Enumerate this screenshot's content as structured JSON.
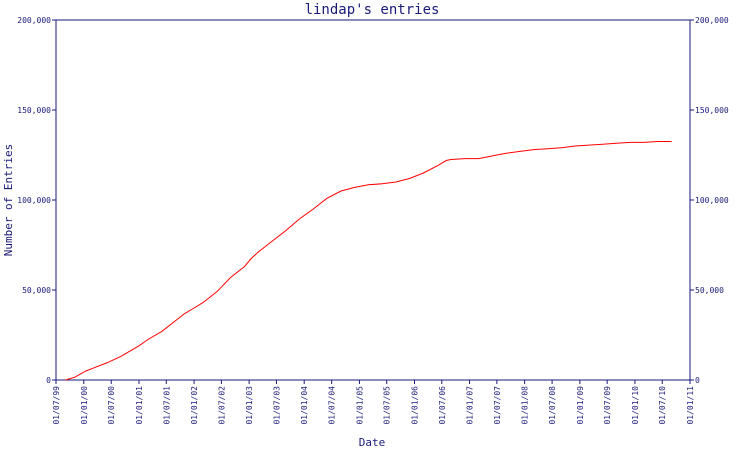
{
  "chart_data": {
    "type": "line",
    "title": "lindap's entries",
    "xlabel": "Date",
    "ylabel": "Number of Entries",
    "ylim": [
      0,
      200000
    ],
    "y_ticks": [
      0,
      50000,
      100000,
      150000,
      200000
    ],
    "y_tick_labels": [
      "0",
      "50,000",
      "100,000",
      "150,000",
      "200,000"
    ],
    "x_tick_labels": [
      "01/07/99",
      "01/01/00",
      "01/07/00",
      "01/01/01",
      "01/07/01",
      "01/01/02",
      "01/07/02",
      "01/01/03",
      "01/07/03",
      "01/01/04",
      "01/07/04",
      "01/01/05",
      "01/07/05",
      "01/01/06",
      "01/07/06",
      "01/01/07",
      "01/07/07",
      "01/01/08",
      "01/07/08",
      "01/01/09",
      "01/07/09",
      "01/01/10",
      "01/07/10",
      "01/01/11"
    ],
    "grid": false,
    "colors": {
      "axis": "#1a1a7a",
      "line": "#ff0000"
    },
    "series": [
      {
        "x": [
          "1999-09-01",
          "1999-11-01",
          "2000-01-15",
          "2000-03-01",
          "2000-06-01",
          "2000-09-01",
          "2000-11-01",
          "2001-01-01",
          "2001-03-01",
          "2001-06-01",
          "2001-09-01",
          "2001-11-01",
          "2002-01-01",
          "2002-03-01",
          "2002-06-01",
          "2002-09-01",
          "2002-12-01",
          "2003-01-15",
          "2003-03-01",
          "2003-06-01",
          "2003-09-01",
          "2003-12-01",
          "2004-03-01",
          "2004-06-01",
          "2004-09-01",
          "2004-12-01",
          "2005-03-01",
          "2005-06-01",
          "2005-09-01",
          "2005-12-01",
          "2006-03-01",
          "2006-06-01",
          "2006-08-01",
          "2006-09-01",
          "2006-12-01",
          "2007-03-01",
          "2007-06-01",
          "2007-09-01",
          "2007-12-01",
          "2008-03-01",
          "2008-06-01",
          "2008-09-01",
          "2008-12-01",
          "2009-03-01",
          "2009-06-01",
          "2009-09-01",
          "2009-12-01",
          "2010-03-01",
          "2010-06-01",
          "2010-09-01"
        ],
        "values": [
          0,
          1500,
          5000,
          6500,
          9500,
          13000,
          16000,
          19000,
          22500,
          27000,
          33000,
          37000,
          40000,
          43000,
          49000,
          57000,
          63000,
          67500,
          71000,
          77000,
          83000,
          89500,
          95000,
          101000,
          105000,
          107000,
          108500,
          109000,
          110000,
          112000,
          115000,
          119000,
          122000,
          122500,
          123000,
          123000,
          124500,
          126000,
          127000,
          128000,
          128500,
          129000,
          130000,
          130500,
          131000,
          131500,
          132000,
          132000,
          132500,
          132500
        ]
      }
    ]
  }
}
